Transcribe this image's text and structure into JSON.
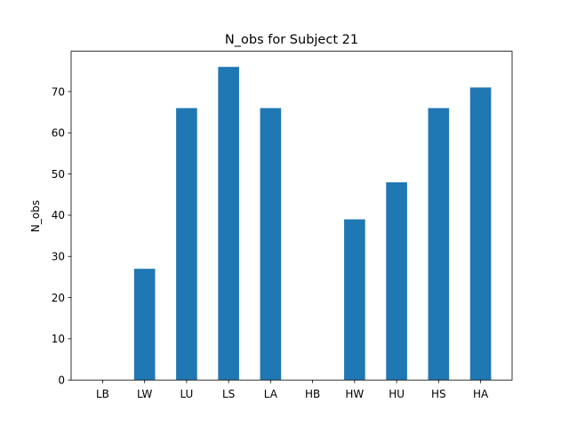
{
  "chart_data": {
    "type": "bar",
    "title": "N_obs for Subject 21",
    "xlabel": "",
    "ylabel": "N_obs",
    "categories": [
      "LB",
      "LW",
      "LU",
      "LS",
      "LA",
      "HB",
      "HW",
      "HU",
      "HS",
      "HA"
    ],
    "values": [
      0,
      27,
      66,
      76,
      66,
      0,
      39,
      48,
      66,
      71
    ],
    "ylim": [
      0,
      79.8
    ],
    "yticks": [
      0,
      10,
      20,
      30,
      40,
      50,
      60,
      70
    ],
    "bar_color": "#1f77b4",
    "grid": false,
    "legend": "none"
  }
}
